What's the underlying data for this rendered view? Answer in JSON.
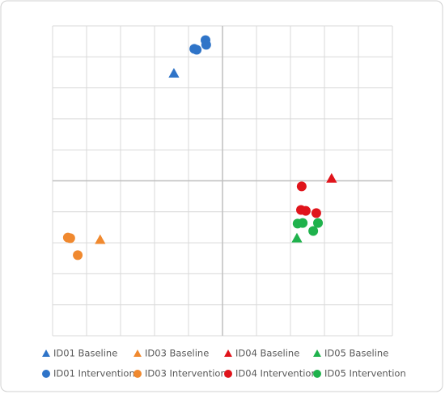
{
  "chart_data": {
    "type": "scatter",
    "xlim": [
      -5,
      5
    ],
    "ylim": [
      -5,
      5
    ],
    "xticks": [
      -5,
      -4,
      -3,
      -2,
      -1,
      0,
      1,
      2,
      3,
      4,
      5
    ],
    "yticks": [
      -5,
      -4,
      -3,
      -2,
      -1,
      0,
      1,
      2,
      3,
      4,
      5
    ],
    "grid": true,
    "series": [
      {
        "name": "ID01 Baseline",
        "color": "#2f74c8",
        "marker": "triangle",
        "x": [
          -1.43
        ],
        "y": [
          3.47
        ]
      },
      {
        "name": "ID03 Baseline",
        "color": "#f0892f",
        "marker": "triangle",
        "x": [
          -3.6
        ],
        "y": [
          -1.9
        ]
      },
      {
        "name": "ID04 Baseline",
        "color": "#e0141b",
        "marker": "triangle",
        "x": [
          3.21
        ],
        "y": [
          0.08
        ]
      },
      {
        "name": "ID05 Baseline",
        "color": "#1fb24c",
        "marker": "triangle",
        "x": [
          2.19
        ],
        "y": [
          -1.85
        ]
      },
      {
        "name": "ID01 Intervention",
        "color": "#2f74c8",
        "marker": "circle",
        "x": [
          -0.83,
          -0.76,
          -0.5,
          -0.48
        ],
        "y": [
          4.26,
          4.23,
          4.54,
          4.39
        ]
      },
      {
        "name": "ID03 Intervention",
        "color": "#f0892f",
        "marker": "circle",
        "x": [
          -4.55,
          -4.48,
          -4.26
        ],
        "y": [
          -1.83,
          -1.85,
          -2.4
        ]
      },
      {
        "name": "ID04 Intervention",
        "color": "#e0141b",
        "marker": "circle",
        "x": [
          2.33,
          2.31,
          2.45,
          2.76
        ],
        "y": [
          -0.18,
          -0.94,
          -0.97,
          -1.04
        ]
      },
      {
        "name": "ID05 Intervention",
        "color": "#1fb24c",
        "marker": "circle",
        "x": [
          2.21,
          2.36,
          2.81,
          2.67
        ],
        "y": [
          -1.38,
          -1.36,
          -1.36,
          -1.62
        ]
      }
    ]
  }
}
